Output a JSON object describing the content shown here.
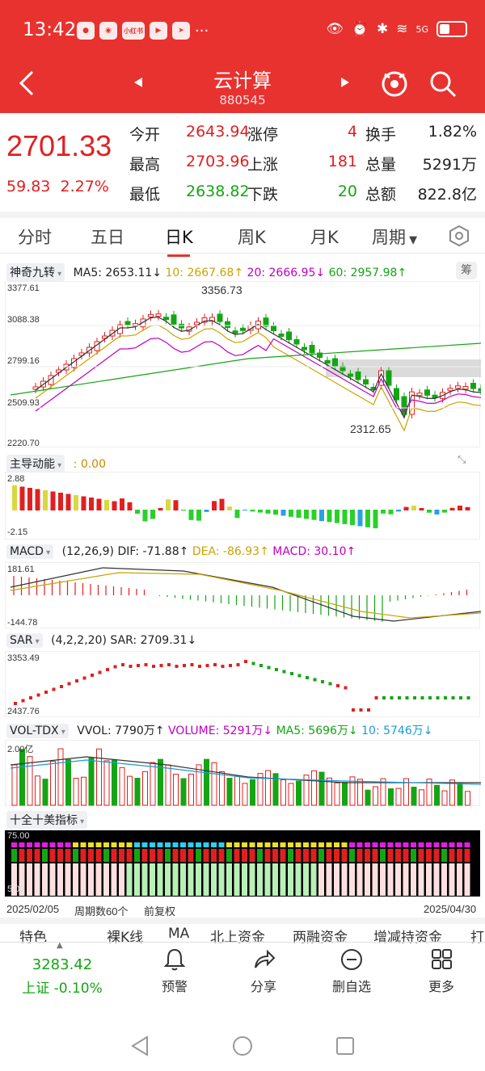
{
  "status": {
    "time": "13:42",
    "app1": "小红书",
    "net": "5G"
  },
  "nav": {
    "title": "云计算",
    "code": "880545"
  },
  "quote": {
    "price": "2701.33",
    "change": "59.83",
    "pct": "2.27%",
    "open_l": "今开",
    "open": "2643.94",
    "high_l": "最高",
    "high": "2703.96",
    "low_l": "最低",
    "low": "2638.82",
    "limitup_l": "涨停",
    "limitup": "4",
    "up_l": "上涨",
    "up": "181",
    "down_l": "下跌",
    "down": "20",
    "turn_l": "换手",
    "turn": "1.82%",
    "vol_l": "总量",
    "vol": "5291万",
    "amt_l": "总额",
    "amt": "822.8亿"
  },
  "tabs": [
    "分时",
    "五日",
    "日K",
    "周K",
    "月K",
    "周期"
  ],
  "main": {
    "ind": "神奇九转",
    "ma5": "MA5: 2653.11↓",
    "ma10": "10: 2667.68↑",
    "ma20": "20: 2666.95↓",
    "ma60": "60: 2957.98↑",
    "badge": "筹",
    "yl": [
      "3377.61",
      "3088.38",
      "2799.16",
      "2509.93",
      "2220.70"
    ],
    "hi": "3356.73",
    "lo": "2312.65"
  },
  "zd": {
    "name": "主导动能",
    "val": ": 0.00",
    "top": "2.88",
    "bot": "-2.15"
  },
  "macd": {
    "name": "MACD",
    "params": "(12,26,9)",
    "dif": "DIF: -71.88↑",
    "dea": "DEA: -86.93↑",
    "m": "MACD: 30.10↑",
    "top": "181.61",
    "bot": "-144.78"
  },
  "sar": {
    "name": "SAR",
    "params": "(4,2,2,20)",
    "v": "SAR: 2709.31↓",
    "top": "3353.49",
    "bot": "2437.76"
  },
  "vol": {
    "name": "VOL-TDX",
    "vvol": "VVOL: 7790万↑",
    "volume": "VOLUME: 5291万↓",
    "ma5": "MA5: 5696万↓",
    "ma10": "10: 5746万↓",
    "top": "2.00亿"
  },
  "sq": {
    "name": "十全十美指标",
    "top": "75.00",
    "bot": "5.00"
  },
  "footer": {
    "start": "2025/02/05",
    "period": "周期数60个",
    "adj": "前复权",
    "end": "2025/04/30"
  },
  "tools": [
    "特色",
    "裸K线",
    "MA",
    "北上资金",
    "两融资金",
    "增减持资金",
    "打"
  ],
  "bottom": {
    "idx": "3283.42",
    "idxname": "上证 -0.10%",
    "b1": "预警",
    "b2": "分享",
    "b3": "删自选",
    "b4": "更多"
  },
  "colors": {
    "red": "#e02020",
    "green": "#14a514",
    "brand": "#e8322f"
  }
}
